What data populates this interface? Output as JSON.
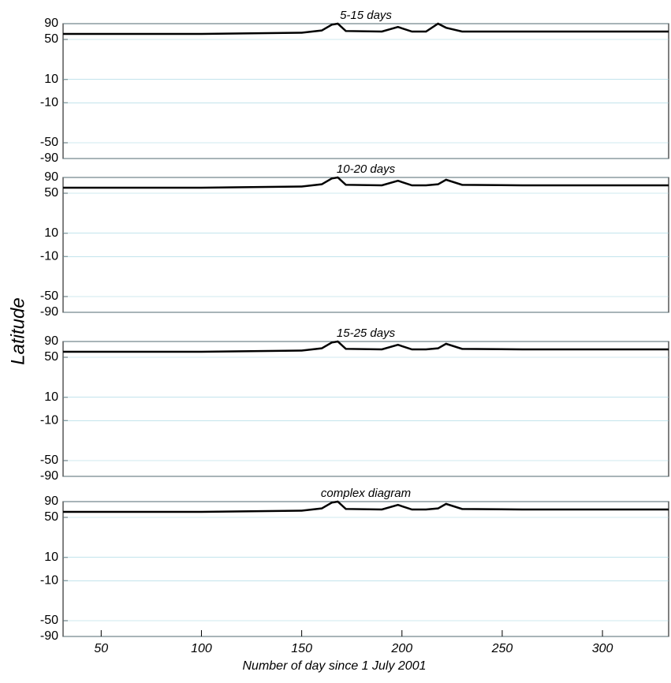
{
  "y_label": "Latitude",
  "chart_data": [
    {
      "type": "line",
      "title": "5-15 days",
      "xlim": [
        31,
        333
      ],
      "ylim": [
        -90,
        90
      ],
      "y_scale": "sine",
      "yticks": [
        90,
        50,
        10,
        -10,
        -50,
        -90
      ],
      "x": [
        31,
        100,
        150,
        160,
        165,
        168,
        172,
        190,
        198,
        205,
        212,
        218,
        222,
        230,
        260,
        333
      ],
      "series": [
        {
          "color": "#000000",
          "values": [
            58,
            58,
            60,
            64,
            80,
            90,
            63,
            62,
            72,
            62,
            62,
            90,
            70,
            62,
            62,
            62
          ]
        }
      ]
    },
    {
      "type": "line",
      "title": "10-20 days",
      "xlim": [
        31,
        333
      ],
      "ylim": [
        -90,
        90
      ],
      "y_scale": "sine",
      "yticks": [
        90,
        50,
        10,
        -10,
        -50,
        -90
      ],
      "x": [
        31,
        100,
        150,
        160,
        165,
        168,
        172,
        190,
        198,
        205,
        212,
        218,
        222,
        230,
        260,
        333
      ],
      "series": [
        {
          "color": "#000000",
          "values": [
            58,
            58,
            60,
            64,
            80,
            90,
            63,
            62,
            72,
            62,
            62,
            64,
            75,
            63,
            62,
            62
          ]
        }
      ]
    },
    {
      "type": "line",
      "title": "15-25 days",
      "xlim": [
        31,
        333
      ],
      "ylim": [
        -90,
        90
      ],
      "y_scale": "sine",
      "yticks": [
        90,
        50,
        10,
        -10,
        -50,
        -90
      ],
      "x": [
        31,
        100,
        150,
        160,
        165,
        168,
        172,
        190,
        198,
        205,
        212,
        218,
        222,
        230,
        260,
        333
      ],
      "series": [
        {
          "color": "#000000",
          "values": [
            58,
            58,
            60,
            64,
            80,
            90,
            63,
            62,
            72,
            62,
            62,
            64,
            75,
            63,
            62,
            62
          ]
        }
      ]
    },
    {
      "type": "line",
      "title": "complex diagram",
      "xlim": [
        31,
        333
      ],
      "ylim": [
        -90,
        90
      ],
      "y_scale": "sine",
      "yticks": [
        90,
        50,
        10,
        -10,
        -50,
        -90
      ],
      "xticks": [
        50,
        100,
        150,
        200,
        250,
        300
      ],
      "x_label": "Number of day since 1 July 2001",
      "x": [
        31,
        100,
        150,
        160,
        165,
        168,
        172,
        190,
        198,
        205,
        212,
        218,
        222,
        230,
        260,
        333
      ],
      "series": [
        {
          "color": "#000000",
          "values": [
            58,
            58,
            60,
            64,
            80,
            90,
            63,
            62,
            72,
            62,
            62,
            64,
            75,
            63,
            62,
            62
          ]
        }
      ]
    }
  ]
}
